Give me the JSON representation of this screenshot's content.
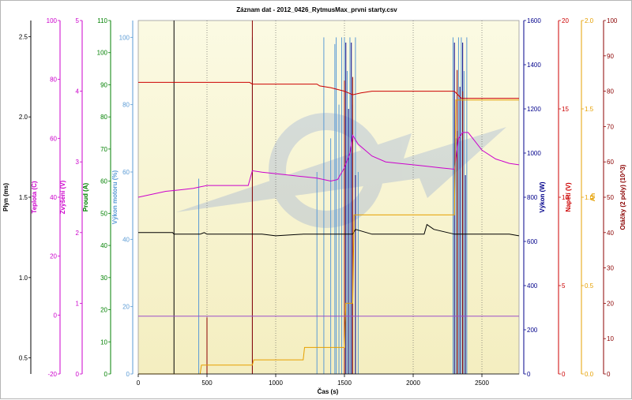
{
  "chart_data": {
    "type": "line",
    "title": "Záznam dat - 2012_0426_RytmusMax_prvni starty.csv",
    "xlabel": "Čas (s)",
    "x_ticks": [
      "0",
      "500",
      "1000",
      "1500",
      "2000",
      "2500"
    ],
    "xlim": [
      0,
      2770
    ],
    "grid": true,
    "left_axes": [
      {
        "key": "plyn",
        "label": "Plyn (ms)",
        "color": "#000000",
        "ylim": [
          0.4,
          2.6
        ],
        "ticks": [
          "0.5",
          "1.0",
          "1.5",
          "2.0",
          "2.5"
        ]
      },
      {
        "key": "teplota",
        "label": "Teplota (C)",
        "color": "#cc00cc",
        "ylim": [
          -20,
          100
        ],
        "ticks": [
          "-20",
          "0",
          "20",
          "40",
          "60",
          "80",
          "100"
        ]
      },
      {
        "key": "zvyseni",
        "label": "Zvýšení (V)",
        "color": "#cc00cc",
        "ylim": [
          0,
          5
        ],
        "ticks": [
          "0",
          "1",
          "2",
          "3",
          "4",
          "5"
        ]
      },
      {
        "key": "proud",
        "label": "Proud (A)",
        "color": "#008000",
        "ylim": [
          0,
          110
        ],
        "ticks": [
          "0",
          "10",
          "20",
          "30",
          "40",
          "50",
          "60",
          "70",
          "80",
          "90",
          "100",
          "110"
        ]
      },
      {
        "key": "vykon_motoru",
        "label": "Výkon motoru (%)",
        "color": "#5b9bd5",
        "ylim": [
          0,
          105
        ],
        "ticks": [
          "0",
          "20",
          "40",
          "60",
          "80",
          "100"
        ]
      }
    ],
    "right_axes": [
      {
        "key": "vykon",
        "label": "Výkon (W)",
        "color": "#00008b",
        "ylim": [
          0,
          1600
        ],
        "ticks": [
          "0",
          "200",
          "400",
          "600",
          "800",
          "1000",
          "1200",
          "1400",
          "1600"
        ]
      },
      {
        "key": "napeti",
        "label": "Napětí (V)",
        "color": "#cc0000",
        "ylim": [
          0,
          20
        ],
        "ticks": [
          "0",
          "5",
          "10",
          "15",
          "20"
        ]
      },
      {
        "key": "ah",
        "label": "Ah",
        "color": "#e6a000",
        "ylim": [
          0,
          2.0
        ],
        "ticks": [
          "0.0",
          "0.5",
          "1.0",
          "1.5",
          "2.0"
        ]
      },
      {
        "key": "otacky",
        "label": "Otáčky (2 póly) (10^3)",
        "color": "#8b0000",
        "ylim": [
          0,
          100
        ],
        "ticks": [
          "0",
          "10",
          "20",
          "30",
          "40",
          "50",
          "60",
          "70",
          "80",
          "90",
          "100"
        ]
      }
    ],
    "series": [
      {
        "axis": "teplota",
        "color": "#cc00cc",
        "x": [
          0,
          100,
          200,
          300,
          400,
          450,
          500,
          600,
          700,
          800,
          830,
          900,
          1000,
          1100,
          1200,
          1300,
          1400,
          1450,
          1500,
          1540,
          1560,
          1600,
          1700,
          1800,
          1900,
          2000,
          2100,
          2200,
          2300,
          2330,
          2360,
          2400,
          2500,
          2600,
          2700,
          2770
        ],
        "y": [
          40,
          41,
          42,
          42.5,
          43,
          43.5,
          44,
          44,
          44,
          44,
          49,
          48.5,
          48,
          47.5,
          47,
          46.5,
          45.5,
          46,
          50,
          55,
          61,
          58,
          54,
          52,
          51.5,
          51,
          50.5,
          50,
          49.5,
          60,
          62,
          62,
          56,
          53,
          51.5,
          51
        ]
      },
      {
        "axis": "plyn",
        "color": "#000000",
        "x": [
          0,
          250,
          260,
          450,
          480,
          500,
          830,
          900,
          1000,
          1200,
          1400,
          1500,
          1560,
          1580,
          1700,
          2000,
          2080,
          2100,
          2150,
          2300,
          2400,
          2700,
          2770
        ],
        "y": [
          1.28,
          1.28,
          1.27,
          1.27,
          1.28,
          1.27,
          1.27,
          1.27,
          1.26,
          1.27,
          1.27,
          1.27,
          1.27,
          1.3,
          1.27,
          1.27,
          1.27,
          1.33,
          1.3,
          1.27,
          1.27,
          1.27,
          1.26
        ]
      },
      {
        "axis": "napeti",
        "color": "#cc0000",
        "x": [
          0,
          810,
          830,
          1300,
          1320,
          1400,
          1450,
          1500,
          1560,
          1620,
          1700,
          2000,
          2300,
          2350,
          2400,
          2500,
          2600,
          2770
        ],
        "y": [
          16.5,
          16.5,
          16.4,
          16.4,
          16.3,
          16.2,
          16.1,
          16.0,
          15.8,
          15.9,
          16.0,
          16.0,
          16.0,
          15.6,
          15.6,
          15.6,
          15.6,
          15.6
        ]
      },
      {
        "axis": "ah",
        "color": "#e6a000",
        "x": [
          0,
          450,
          460,
          830,
          840,
          1200,
          1210,
          1500,
          1510,
          1560,
          1570,
          2300,
          2310,
          2770
        ],
        "y": [
          0.0,
          0.0,
          0.05,
          0.05,
          0.08,
          0.08,
          0.15,
          0.15,
          0.4,
          0.4,
          0.9,
          0.9,
          1.55,
          1.55
        ]
      },
      {
        "axis": "proud",
        "color": "#9b4dca",
        "x": [
          0,
          2770
        ],
        "y": [
          18,
          18
        ]
      }
    ],
    "spikes": [
      {
        "axis": "vykon_motoru",
        "color": "#5b9bd5",
        "x": [
          440,
          830,
          1300,
          1350,
          1400,
          1430,
          1440,
          1460,
          1480,
          1500,
          1520,
          1540,
          1560,
          1580,
          1600,
          2290,
          2310,
          2330,
          2350,
          2370,
          2390
        ],
        "y": [
          58,
          100,
          60,
          100,
          70,
          98,
          100,
          80,
          100,
          100,
          90,
          100,
          80,
          100,
          60,
          100,
          70,
          100,
          100,
          90,
          100
        ]
      },
      {
        "axis": "vykon",
        "color": "#00008b",
        "x": [
          1510,
          1530,
          1550,
          1580,
          2300,
          2320,
          2340,
          2360,
          2380
        ],
        "y": [
          1500,
          1200,
          1500,
          900,
          1500,
          1100,
          1300,
          1500,
          900
        ]
      },
      {
        "axis": "otacky",
        "color": "#8b0000",
        "x": [
          500,
          830,
          1500,
          1560,
          2320,
          2360
        ],
        "y": [
          16,
          100,
          83,
          84,
          86,
          80
        ]
      },
      {
        "axis": "vykon_motoru",
        "color": "#000000",
        "x": [
          260
        ],
        "y": [
          105
        ]
      }
    ]
  }
}
